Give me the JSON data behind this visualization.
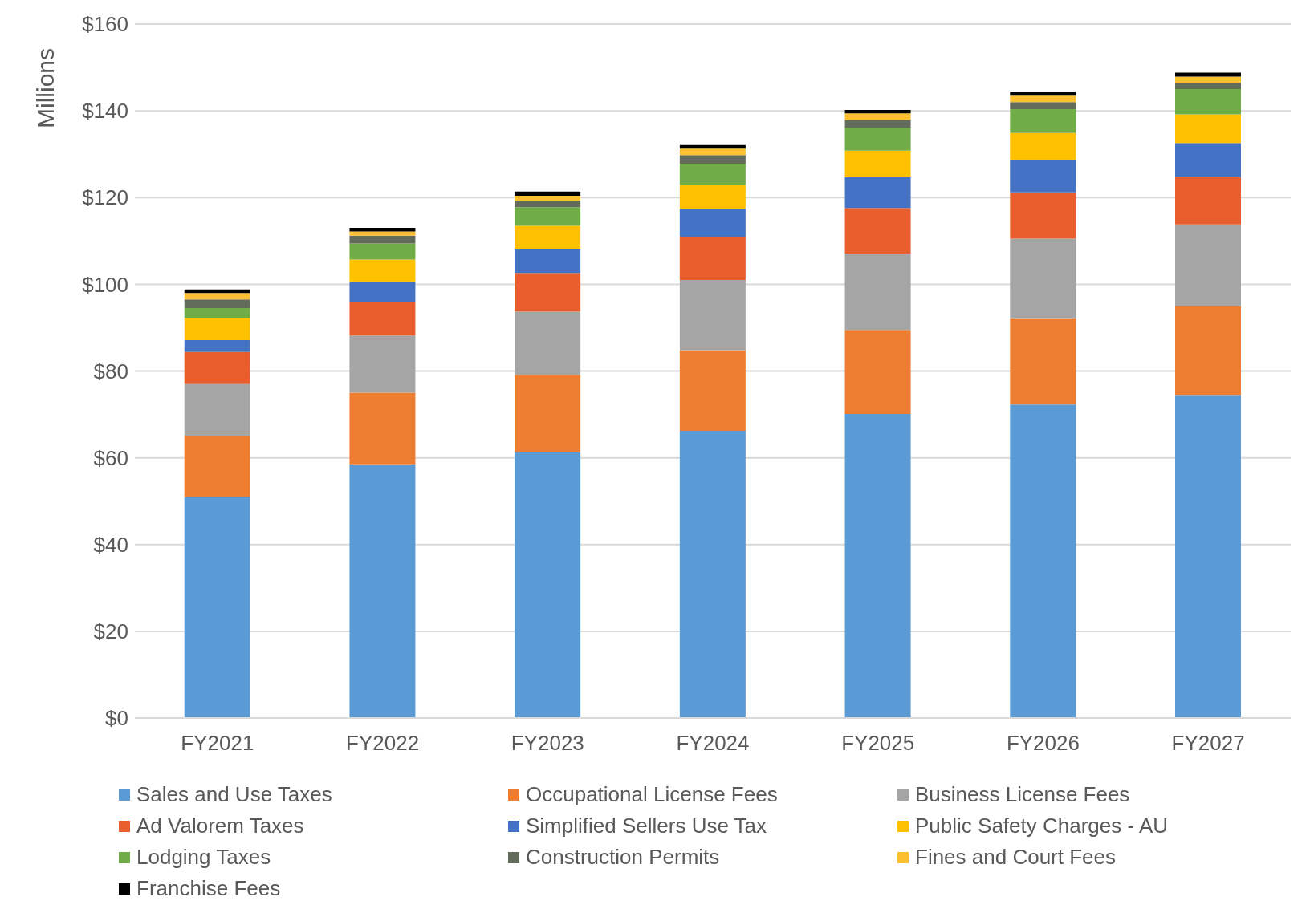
{
  "chart_data": {
    "type": "bar",
    "stacked": true,
    "ylabel": "Millions",
    "categories": [
      "FY2021",
      "FY2022",
      "FY2023",
      "FY2024",
      "FY2025",
      "FY2026",
      "FY2027"
    ],
    "series": [
      {
        "name": "Sales and Use Taxes",
        "color": "#5b9bd5",
        "values": [
          50.9,
          58.5,
          61.3,
          66.2,
          70.1,
          72.3,
          74.5
        ]
      },
      {
        "name": "Occupational License Fees",
        "color": "#ed7d31",
        "values": [
          14.2,
          16.5,
          17.8,
          18.6,
          19.4,
          19.9,
          20.5
        ]
      },
      {
        "name": "Business License Fees",
        "color": "#a5a5a5",
        "values": [
          11.9,
          13.2,
          14.6,
          16.2,
          17.6,
          18.3,
          18.8
        ]
      },
      {
        "name": "Ad Valorem Taxes",
        "color": "#e95e2d",
        "values": [
          7.4,
          7.8,
          8.9,
          10.0,
          10.5,
          10.7,
          10.9
        ]
      },
      {
        "name": "Simplified Sellers Use Tax",
        "color": "#4472c4",
        "values": [
          2.7,
          4.5,
          5.6,
          6.4,
          7.1,
          7.4,
          7.9
        ]
      },
      {
        "name": "Public Safety Charges - AU",
        "color": "#ffc000",
        "values": [
          5.2,
          5.2,
          5.3,
          5.5,
          6.1,
          6.3,
          6.6
        ]
      },
      {
        "name": "Lodging Taxes",
        "color": "#70ad47",
        "values": [
          2.2,
          3.7,
          4.3,
          4.9,
          5.3,
          5.5,
          5.8
        ]
      },
      {
        "name": "Construction Permits",
        "color": "#636b5a",
        "values": [
          2.0,
          1.8,
          1.5,
          2.0,
          1.8,
          1.6,
          1.5
        ]
      },
      {
        "name": "Fines and Court Fees",
        "color": "#fbbf30",
        "values": [
          1.5,
          1.0,
          1.1,
          1.5,
          1.5,
          1.5,
          1.4
        ]
      },
      {
        "name": "Franchise Fees",
        "color": "#000000",
        "values": [
          0.8,
          0.8,
          1.0,
          0.8,
          0.8,
          0.8,
          0.9
        ]
      }
    ],
    "ylim": [
      0,
      160
    ],
    "yticks": [
      {
        "value": 0,
        "label": "$0"
      },
      {
        "value": 20,
        "label": "$20"
      },
      {
        "value": 40,
        "label": "$40"
      },
      {
        "value": 60,
        "label": "$60"
      },
      {
        "value": 80,
        "label": "$80"
      },
      {
        "value": 100,
        "label": "$100"
      },
      {
        "value": 120,
        "label": "$120"
      },
      {
        "value": 140,
        "label": "$140"
      },
      {
        "value": 160,
        "label": "$160"
      }
    ],
    "grid": "y",
    "legend": "bottom"
  }
}
